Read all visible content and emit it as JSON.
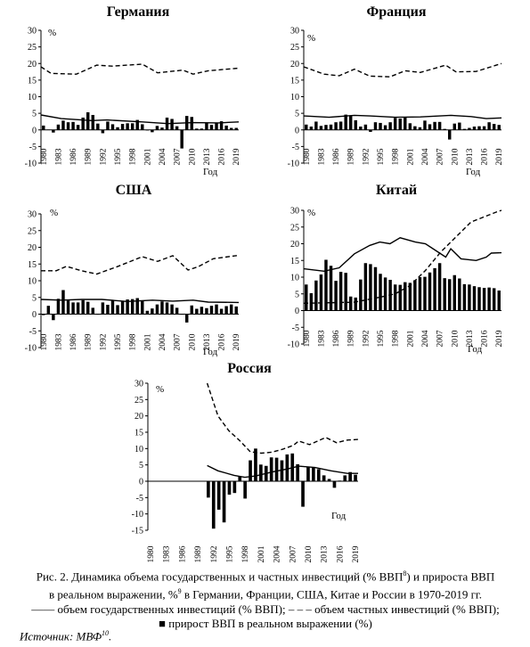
{
  "caption": {
    "line1_a": "Рис. 2. Динамика объема государственных и частных инвестиций (% ВВП",
    "line1_sup": "8",
    "line1_b": ") и прироста ВВП",
    "line2_a": "в реальном выражении, %",
    "line2_sup": "9",
    "line2_b": " в Германии, Франции, США, Китае и России в 1970-2019 гг.",
    "legend_gov": "—— объем государственных инвестиций (% ВВП);",
    "legend_priv": "– – – объем частных инвестиций (% ВВП);",
    "legend_gdp_marker": "■",
    "legend_gdp": "прирост ВВП в реальном выражении (%)"
  },
  "source": {
    "label": "Источник: МВФ",
    "sup": "10",
    "end": "."
  },
  "chart_data": [
    {
      "type": "bar",
      "title": "Германия",
      "unit_label": "%",
      "xlabel": "Год",
      "ylim": [
        -10,
        30
      ],
      "yticks": [
        -10,
        -5,
        0,
        5,
        10,
        15,
        20,
        25,
        30
      ],
      "x_start": 1980,
      "x_end": 2019,
      "tick_years": [
        1980,
        1983,
        1986,
        1989,
        1992,
        1995,
        1998,
        2001,
        2004,
        2007,
        2010,
        2013,
        2016,
        2019
      ],
      "gdp_growth": [
        1.3,
        0.1,
        -0.8,
        1.6,
        2.8,
        2.3,
        2.4,
        1.5,
        3.7,
        5.3,
        4.5,
        1.9,
        -1.0,
        2.5,
        1.7,
        0.8,
        1.8,
        2.0,
        2.0,
        3.0,
        1.7,
        0.0,
        -0.7,
        1.2,
        0.7,
        3.7,
        3.3,
        1.1,
        -5.6,
        4.2,
        3.9,
        0.4,
        0.4,
        2.2,
        1.5,
        2.2,
        2.6,
        1.3,
        0.6,
        0.6
      ],
      "series": [
        {
          "name": "объем государственных инвестиций (% ВВП)",
          "style": "solid",
          "values": [
            [
              1980,
              4.5
            ],
            [
              1984,
              3.4
            ],
            [
              1990,
              2.8
            ],
            [
              1993,
              3.0
            ],
            [
              2000,
              2.4
            ],
            [
              2005,
              1.9
            ],
            [
              2010,
              2.2
            ],
            [
              2015,
              2.1
            ],
            [
              2019,
              2.4
            ]
          ]
        },
        {
          "name": "объем частных инвестиций (% ВВП)",
          "style": "dashed",
          "values": [
            [
              1980,
              19
            ],
            [
              1982,
              17
            ],
            [
              1987,
              16.8
            ],
            [
              1991,
              19.5
            ],
            [
              1994,
              19.2
            ],
            [
              2000,
              19.8
            ],
            [
              2003,
              17.2
            ],
            [
              2008,
              18.0
            ],
            [
              2010,
              16.8
            ],
            [
              2013,
              17.8
            ],
            [
              2019,
              18.6
            ]
          ]
        }
      ]
    },
    {
      "type": "bar",
      "title": "Франция",
      "unit_label": "%",
      "xlabel": "Год",
      "ylim": [
        -10,
        30
      ],
      "yticks": [
        -10,
        -5,
        0,
        5,
        10,
        15,
        20,
        25,
        30
      ],
      "x_start": 1980,
      "x_end": 2019,
      "tick_years": [
        1980,
        1983,
        1986,
        1989,
        1992,
        1995,
        1998,
        2001,
        2004,
        2007,
        2010,
        2013,
        2016,
        2019
      ],
      "gdp_growth": [
        1.6,
        1.0,
        2.5,
        1.2,
        1.5,
        1.6,
        2.3,
        2.5,
        4.6,
        4.2,
        2.9,
        1.0,
        1.6,
        -0.6,
        2.3,
        2.1,
        1.4,
        2.3,
        3.6,
        3.4,
        3.9,
        2.0,
        1.1,
        0.8,
        2.8,
        1.7,
        2.4,
        2.4,
        0.3,
        -2.9,
        1.9,
        2.2,
        0.3,
        0.6,
        1.0,
        1.1,
        1.1,
        2.3,
        1.8,
        1.5
      ],
      "series": [
        {
          "name": "объем государственных инвестиций (% ВВП)",
          "style": "solid",
          "values": [
            [
              1980,
              4.2
            ],
            [
              1985,
              3.8
            ],
            [
              1990,
              4.4
            ],
            [
              1993,
              4.2
            ],
            [
              1998,
              3.8
            ],
            [
              2003,
              3.9
            ],
            [
              2009,
              4.4
            ],
            [
              2013,
              4.0
            ],
            [
              2016,
              3.4
            ],
            [
              2019,
              3.6
            ]
          ]
        },
        {
          "name": "объем частных инвестиций (% ВВП)",
          "style": "dashed",
          "values": [
            [
              1980,
              19
            ],
            [
              1984,
              16.8
            ],
            [
              1987,
              16.3
            ],
            [
              1990,
              18.3
            ],
            [
              1993,
              16.2
            ],
            [
              1997,
              16.0
            ],
            [
              2000,
              17.8
            ],
            [
              2003,
              17.3
            ],
            [
              2008,
              19.5
            ],
            [
              2010,
              17.5
            ],
            [
              2014,
              17.6
            ],
            [
              2019,
              20
            ]
          ]
        }
      ]
    },
    {
      "type": "bar",
      "title": "США",
      "unit_label": "%",
      "xlabel": "Год",
      "ylim": [
        -10,
        30
      ],
      "yticks": [
        -10,
        -5,
        0,
        5,
        10,
        15,
        20,
        25,
        30
      ],
      "x_start": 1980,
      "x_end": 2019,
      "tick_years": [
        1980,
        1983,
        1986,
        1989,
        1992,
        1995,
        1998,
        2001,
        2004,
        2007,
        2010,
        2013,
        2016,
        2019
      ],
      "gdp_growth": [
        -0.3,
        2.5,
        -1.8,
        4.6,
        7.2,
        4.2,
        3.5,
        3.5,
        4.2,
        3.7,
        1.9,
        -0.1,
        3.5,
        2.8,
        4.0,
        2.7,
        3.8,
        4.4,
        4.5,
        4.8,
        4.1,
        1.0,
        1.7,
        2.9,
        3.8,
        3.5,
        2.9,
        1.9,
        -0.1,
        -2.5,
        2.6,
        1.6,
        2.2,
        1.8,
        2.5,
        2.9,
        1.6,
        2.4,
        2.9,
        2.3
      ],
      "series": [
        {
          "name": "объем государственных инвестиций (% ВВП)",
          "style": "solid",
          "values": [
            [
              1980,
              4.4
            ],
            [
              1984,
              4.2
            ],
            [
              1988,
              4.4
            ],
            [
              1992,
              4.4
            ],
            [
              1997,
              3.8
            ],
            [
              2002,
              4.2
            ],
            [
              2006,
              3.9
            ],
            [
              2010,
              4.2
            ],
            [
              2013,
              3.6
            ],
            [
              2019,
              3.5
            ]
          ]
        },
        {
          "name": "объем частных инвестиций (% ВВП)",
          "style": "dashed",
          "values": [
            [
              1980,
              13.0
            ],
            [
              1983,
              13.0
            ],
            [
              1985,
              14.3
            ],
            [
              1988,
              13.0
            ],
            [
              1991,
              12.0
            ],
            [
              1995,
              14.2
            ],
            [
              2000,
              17.2
            ],
            [
              2003,
              15.8
            ],
            [
              2006,
              17.5
            ],
            [
              2009,
              13.2
            ],
            [
              2011,
              14.2
            ],
            [
              2014,
              16.6
            ],
            [
              2019,
              17.6
            ]
          ]
        }
      ]
    },
    {
      "type": "bar",
      "title": "Китай",
      "unit_label": "%",
      "xlabel": "Год",
      "ylim": [
        -10,
        30
      ],
      "yticks": [
        -10,
        -5,
        0,
        5,
        10,
        15,
        20,
        25,
        30
      ],
      "x_start": 1980,
      "x_end": 2019,
      "tick_years": [
        1980,
        1983,
        1986,
        1989,
        1992,
        1995,
        1998,
        2001,
        2004,
        2007,
        2010,
        2013,
        2016,
        2019
      ],
      "gdp_growth": [
        7.8,
        5.2,
        9.0,
        10.8,
        15.2,
        13.4,
        8.9,
        11.6,
        11.3,
        4.2,
        3.9,
        9.3,
        14.2,
        13.9,
        13.0,
        11.0,
        9.9,
        9.2,
        7.8,
        7.7,
        8.5,
        8.3,
        9.1,
        10.0,
        10.1,
        11.4,
        12.7,
        14.2,
        9.7,
        9.4,
        10.6,
        9.6,
        7.9,
        7.8,
        7.3,
        7.0,
        6.8,
        6.9,
        6.7,
        6.0
      ],
      "series": [
        {
          "name": "объем государственных инвестиций (% ВВП)",
          "style": "solid",
          "values": [
            [
              1980,
              12.5
            ],
            [
              1984,
              11.8
            ],
            [
              1987,
              12.8
            ],
            [
              1990,
              17.0
            ],
            [
              1993,
              19.5
            ],
            [
              1995,
              20.5
            ],
            [
              1997,
              20.0
            ],
            [
              1999,
              21.8
            ],
            [
              2002,
              20.5
            ],
            [
              2004,
              20.0
            ],
            [
              2006,
              18.0
            ],
            [
              2008,
              16.0
            ],
            [
              2009,
              18.5
            ],
            [
              2011,
              15.5
            ],
            [
              2014,
              15.0
            ],
            [
              2016,
              16.0
            ],
            [
              2017,
              17.2
            ],
            [
              2019,
              17.3
            ]
          ]
        },
        {
          "name": "объем частных инвестиций (% ВВП)",
          "style": "dashed",
          "values": [
            [
              1980,
              2.2
            ],
            [
              1990,
              2.5
            ],
            [
              1995,
              4.0
            ],
            [
              1998,
              5.0
            ],
            [
              2001,
              7.5
            ],
            [
              2004,
              12.0
            ],
            [
              2007,
              17.5
            ],
            [
              2010,
              22.0
            ],
            [
              2013,
              26.5
            ],
            [
              2016,
              28.3
            ],
            [
              2018,
              29.5
            ],
            [
              2019,
              30
            ]
          ]
        }
      ]
    },
    {
      "type": "bar",
      "title": "Россия",
      "unit_label": "%",
      "xlabel": "Год",
      "ylim": [
        -15,
        30
      ],
      "yticks": [
        -15,
        -10,
        -5,
        0,
        5,
        10,
        15,
        20,
        25,
        30
      ],
      "x_start": 1980,
      "x_end": 2019,
      "tick_years": [
        1980,
        1983,
        1986,
        1989,
        1992,
        1995,
        1998,
        2001,
        2004,
        2007,
        2010,
        2013,
        2016,
        2019
      ],
      "gdp_growth": [
        null,
        null,
        null,
        null,
        null,
        null,
        null,
        null,
        null,
        null,
        null,
        -5.0,
        -14.5,
        -8.7,
        -12.6,
        -4.1,
        -3.6,
        1.4,
        -5.3,
        6.4,
        10.0,
        5.1,
        4.7,
        7.3,
        7.2,
        6.4,
        8.2,
        8.5,
        5.2,
        -7.8,
        4.5,
        4.3,
        3.7,
        1.8,
        0.7,
        -2.0,
        0.2,
        1.8,
        2.8,
        2.0
      ],
      "series": [
        {
          "name": "объем государственных инвестиций (% ВВП)",
          "style": "solid",
          "values": [
            [
              1991,
              4.8
            ],
            [
              1993,
              3.2
            ],
            [
              1996,
              1.8
            ],
            [
              1998,
              1.2
            ],
            [
              2000,
              1.6
            ],
            [
              2003,
              2.8
            ],
            [
              2006,
              3.8
            ],
            [
              2008,
              4.6
            ],
            [
              2011,
              4.2
            ],
            [
              2014,
              3.2
            ],
            [
              2017,
              2.4
            ],
            [
              2019,
              2.4
            ]
          ]
        },
        {
          "name": "объем частных инвестиций (% ВВП)",
          "style": "dashed",
          "values": [
            [
              1991,
              30
            ],
            [
              1993,
              20
            ],
            [
              1995,
              15.5
            ],
            [
              1997,
              12.5
            ],
            [
              1999,
              9.0
            ],
            [
              2001,
              8.6
            ],
            [
              2003,
              8.9
            ],
            [
              2005,
              9.8
            ],
            [
              2007,
              11.0
            ],
            [
              2008,
              12.3
            ],
            [
              2010,
              11.2
            ],
            [
              2013,
              13.4
            ],
            [
              2015,
              11.8
            ],
            [
              2017,
              12.6
            ],
            [
              2019,
              12.8
            ]
          ]
        }
      ]
    }
  ]
}
